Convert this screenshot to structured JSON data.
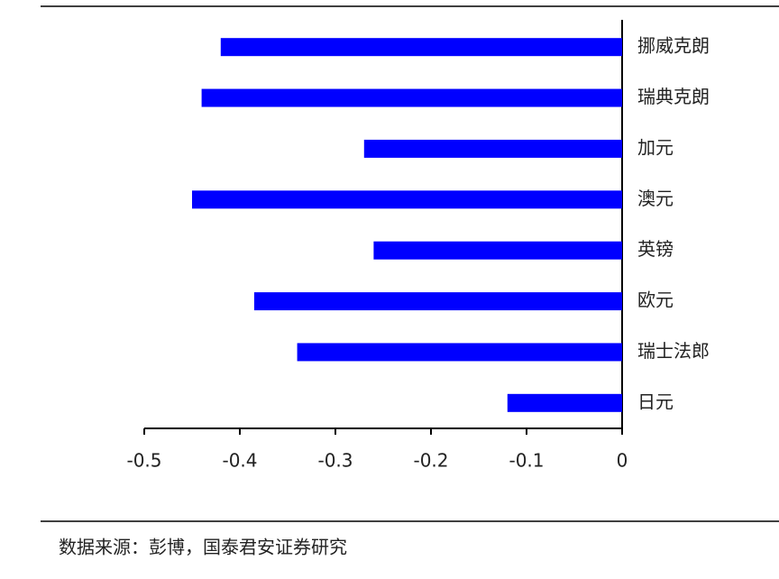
{
  "chart_data": {
    "type": "hbar",
    "categories": [
      "挪威克朗",
      "瑞典克朗",
      "加元",
      "澳元",
      "英镑",
      "欧元",
      "瑞士法郎",
      "日元"
    ],
    "values": [
      -0.42,
      -0.44,
      -0.27,
      -0.45,
      -0.26,
      -0.385,
      -0.34,
      -0.12
    ],
    "color": "#0000ff",
    "xlim": [
      -0.5,
      0
    ],
    "xticks": [
      -0.5,
      -0.4,
      -0.3,
      -0.2,
      -0.1,
      0
    ],
    "grid": false,
    "source": "数据来源：彭博，国泰君安证券研究"
  }
}
